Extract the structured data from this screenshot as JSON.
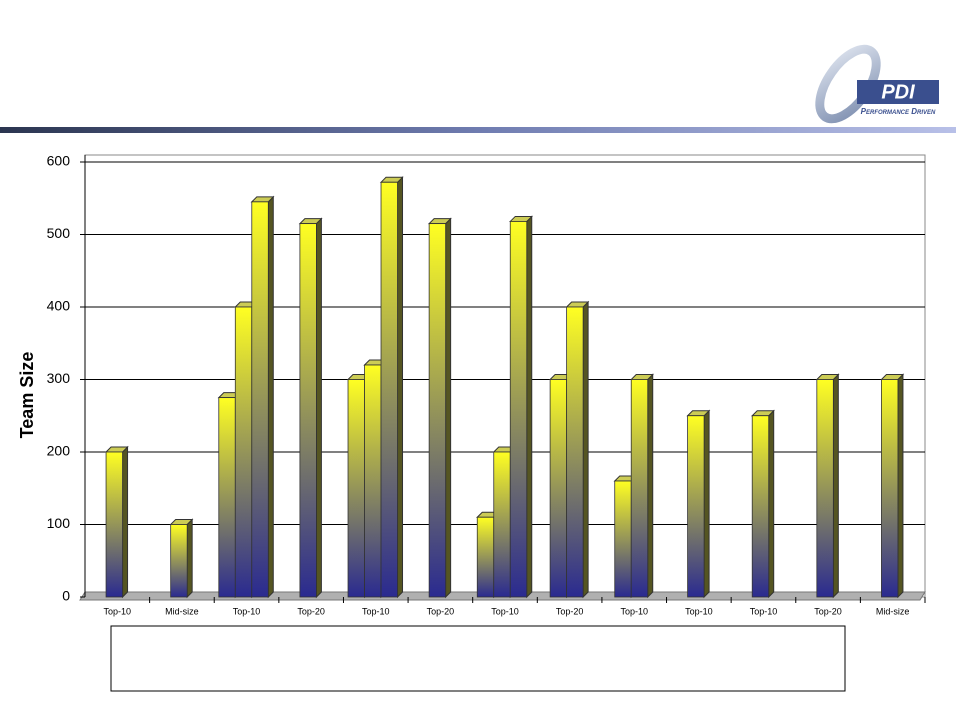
{
  "logo": {
    "name": "PDI",
    "tagline": "Performance Driven"
  },
  "chart_data": {
    "type": "bar",
    "y_label": "Team Size",
    "categories": [
      "Top-10",
      "Mid-size",
      "Top-10",
      "Top-20",
      "Top-10",
      "Top-20",
      "Top-10",
      "Top-20",
      "Top-10",
      "Top-10",
      "Top-10",
      "Top-20",
      "Mid-size"
    ],
    "values": [
      [
        200
      ],
      [
        100
      ],
      [
        275,
        400,
        545
      ],
      [
        515
      ],
      [
        300,
        320,
        572
      ],
      [
        515
      ],
      [
        110,
        200,
        518
      ],
      [
        300,
        400
      ],
      [
        160,
        300
      ],
      [
        250
      ],
      [
        250
      ],
      [
        300
      ],
      [
        300
      ]
    ],
    "colors": [
      "#ffff22",
      "#2a2a90"
    ],
    "ylim": [
      0,
      600
    ],
    "yticks": [
      0,
      100,
      200,
      300,
      400,
      500,
      600
    ],
    "grid": true
  }
}
